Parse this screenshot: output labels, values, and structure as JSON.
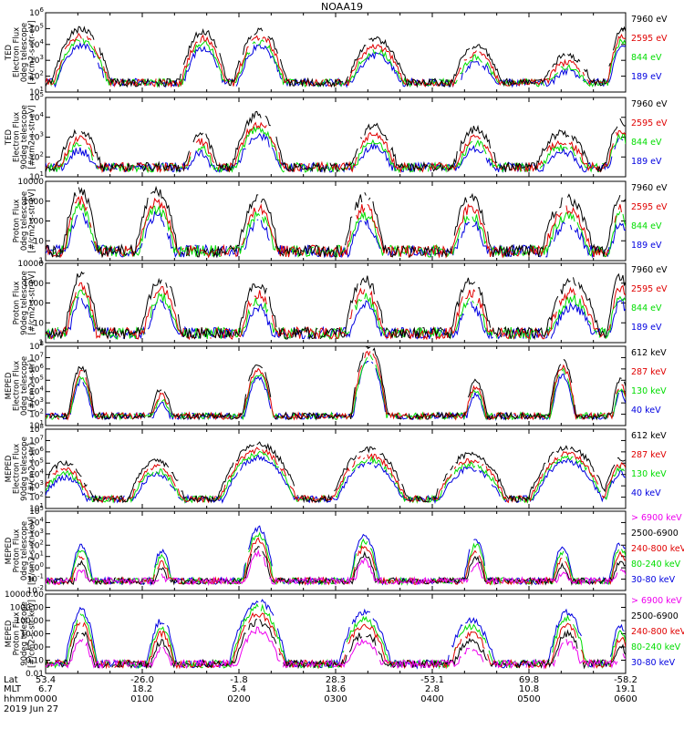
{
  "title": "NOAA19",
  "colors": {
    "black": "#000000",
    "red": "#e00000",
    "green": "#00dd00",
    "blue": "#0000e0",
    "magenta": "#ee00ee"
  },
  "time": {
    "start": "0000",
    "end": "0600",
    "date": "2019 Jun 27"
  },
  "footer": {
    "row_labels": [
      "Lat",
      "MLT",
      "hhmm",
      "2019 Jun 27"
    ],
    "ticks": [
      {
        "lat": "53.4",
        "mlt": "6.7",
        "hhmm": "0000"
      },
      {
        "lat": "-26.0",
        "mlt": "18.2",
        "hhmm": "0100"
      },
      {
        "lat": "-1.8",
        "mlt": "5.4",
        "hhmm": "0200"
      },
      {
        "lat": "28.3",
        "mlt": "18.6",
        "hhmm": "0300"
      },
      {
        "lat": "-53.1",
        "mlt": "2.8",
        "hhmm": "0400"
      },
      {
        "lat": "69.8",
        "mlt": "10.8",
        "hhmm": "0500"
      },
      {
        "lat": "-58.2",
        "mlt": "19.1",
        "hhmm": "0600"
      }
    ]
  },
  "chart_data": [
    {
      "type": "line",
      "panel": 1,
      "ylabel_lines": [
        "TED",
        "Electron Flux",
        "0deg telescope",
        "[#/cm2-s-str-eV]"
      ],
      "ylog": true,
      "ylim": [
        1,
        1000000
      ],
      "ytick_labels": [
        "10^1",
        "10^2",
        "10^3",
        "10^4",
        "10^5",
        "10^6"
      ],
      "legend": [
        {
          "label": "7960 eV",
          "color": "black"
        },
        {
          "label": "2595 eV",
          "color": "red"
        },
        {
          "label": "844 eV",
          "color": "green"
        },
        {
          "label": "189 eV",
          "color": "blue"
        }
      ],
      "events": [
        {
          "t": 0.37,
          "peak": 4.6,
          "w": 0.22
        },
        {
          "t": 1.63,
          "peak": 4.4,
          "w": 0.18
        },
        {
          "t": 2.22,
          "peak": 4.5,
          "w": 0.2
        },
        {
          "t": 3.42,
          "peak": 3.8,
          "w": 0.25
        },
        {
          "t": 4.46,
          "peak": 3.3,
          "w": 0.22
        },
        {
          "t": 5.4,
          "peak": 2.6,
          "w": 0.25
        },
        {
          "t": 5.97,
          "peak": 4.6,
          "w": 0.12
        }
      ]
    },
    {
      "type": "line",
      "panel": 2,
      "ylabel_lines": [
        "TED",
        "Electron Flux",
        "90deg telescope",
        "[#/cm2-s-str-eV]"
      ],
      "ylog": true,
      "ylim": [
        1,
        100000
      ],
      "ytick_labels": [
        "10^1",
        "10^2",
        "10^3",
        "10^4",
        "10^5"
      ],
      "legend": [
        {
          "label": "7960 eV",
          "color": "black"
        },
        {
          "label": "2595 eV",
          "color": "red"
        },
        {
          "label": "844 eV",
          "color": "green"
        },
        {
          "label": "189 eV",
          "color": "blue"
        }
      ],
      "events": [
        {
          "t": 0.35,
          "peak": 2.7,
          "w": 0.2
        },
        {
          "t": 1.6,
          "peak": 2.6,
          "w": 0.15
        },
        {
          "t": 2.2,
          "peak": 3.7,
          "w": 0.2
        },
        {
          "t": 3.4,
          "peak": 3.0,
          "w": 0.2
        },
        {
          "t": 4.45,
          "peak": 2.8,
          "w": 0.2
        },
        {
          "t": 5.35,
          "peak": 2.6,
          "w": 0.25
        },
        {
          "t": 5.95,
          "peak": 3.3,
          "w": 0.12
        }
      ]
    },
    {
      "type": "line",
      "panel": 3,
      "ylabel_lines": [
        "Proton Flux",
        "0deg telescope",
        "[#/cm2-s-str-eV]"
      ],
      "ylog": true,
      "ylim": [
        1,
        10000
      ],
      "ytick_labels": [
        "1",
        "10",
        "100",
        "1000",
        "10000"
      ],
      "legend": [
        {
          "label": "7960 eV",
          "color": "black"
        },
        {
          "label": "2595 eV",
          "color": "red"
        },
        {
          "label": "844 eV",
          "color": "green"
        },
        {
          "label": "189 eV",
          "color": "blue"
        }
      ],
      "events": [
        {
          "t": 0.36,
          "peak": 3.4,
          "w": 0.12
        },
        {
          "t": 1.15,
          "peak": 3.3,
          "w": 0.15
        },
        {
          "t": 2.2,
          "peak": 3.0,
          "w": 0.15
        },
        {
          "t": 3.3,
          "peak": 3.0,
          "w": 0.15
        },
        {
          "t": 4.4,
          "peak": 3.0,
          "w": 0.15
        },
        {
          "t": 5.4,
          "peak": 2.9,
          "w": 0.2
        },
        {
          "t": 5.95,
          "peak": 3.0,
          "w": 0.1
        }
      ]
    },
    {
      "type": "line",
      "panel": 4,
      "ylabel_lines": [
        "Proton Flux",
        "90deg telescope",
        "[#/cm2-s-str-eV]"
      ],
      "ylog": true,
      "ylim": [
        1,
        10000
      ],
      "ytick_labels": [
        "1",
        "10",
        "100",
        "1000",
        "10000"
      ],
      "legend": [
        {
          "label": "7960 eV",
          "color": "black"
        },
        {
          "label": "2595 eV",
          "color": "red"
        },
        {
          "label": "844 eV",
          "color": "green"
        },
        {
          "label": "189 eV",
          "color": "blue"
        }
      ],
      "events": [
        {
          "t": 0.37,
          "peak": 3.2,
          "w": 0.12
        },
        {
          "t": 1.2,
          "peak": 3.0,
          "w": 0.15
        },
        {
          "t": 2.2,
          "peak": 2.8,
          "w": 0.15
        },
        {
          "t": 3.3,
          "peak": 3.0,
          "w": 0.15
        },
        {
          "t": 4.4,
          "peak": 2.9,
          "w": 0.15
        },
        {
          "t": 5.45,
          "peak": 2.9,
          "w": 0.2
        },
        {
          "t": 5.95,
          "peak": 3.1,
          "w": 0.1
        }
      ]
    },
    {
      "type": "line",
      "panel": 5,
      "ylabel_lines": [
        "MEPED",
        "Electron Flux",
        "0deg telescope",
        "[#/cm2-s-str]"
      ],
      "ylog": true,
      "ylim": [
        10,
        100000000
      ],
      "ytick_labels": [
        "10^1",
        "10^2",
        "10^3",
        "10^4",
        "10^5",
        "10^6",
        "10^7",
        "10^8"
      ],
      "legend": [
        {
          "label": "612 keV",
          "color": "black"
        },
        {
          "label": "287 keV",
          "color": "red"
        },
        {
          "label": "130 keV",
          "color": "green"
        },
        {
          "label": "40 keV",
          "color": "blue"
        }
      ],
      "events": [
        {
          "t": 0.37,
          "peak": 6.0,
          "w": 0.1
        },
        {
          "t": 1.2,
          "peak": 4.0,
          "w": 0.12
        },
        {
          "t": 2.2,
          "peak": 6.3,
          "w": 0.12
        },
        {
          "t": 3.35,
          "peak": 7.8,
          "w": 0.12
        },
        {
          "t": 4.45,
          "peak": 4.8,
          "w": 0.1
        },
        {
          "t": 5.35,
          "peak": 6.5,
          "w": 0.1
        },
        {
          "t": 5.95,
          "peak": 5.0,
          "w": 0.08
        }
      ]
    },
    {
      "type": "line",
      "panel": 6,
      "ylabel_lines": [
        "MEPED",
        "Electron Flux",
        "90deg telescope",
        "[#/cm2-s-str]"
      ],
      "ylog": true,
      "ylim": [
        10,
        100000000
      ],
      "ytick_labels": [
        "10^1",
        "10^2",
        "10^3",
        "10^4",
        "10^5",
        "10^6",
        "10^7",
        "10^8"
      ],
      "legend": [
        {
          "label": "612 keV",
          "color": "black"
        },
        {
          "label": "287 keV",
          "color": "red"
        },
        {
          "label": "130 keV",
          "color": "green"
        },
        {
          "label": "40 keV",
          "color": "blue"
        }
      ],
      "events": [
        {
          "t": 0.2,
          "peak": 4.8,
          "w": 0.25
        },
        {
          "t": 1.15,
          "peak": 5.0,
          "w": 0.25
        },
        {
          "t": 2.2,
          "peak": 6.5,
          "w": 0.3
        },
        {
          "t": 3.35,
          "peak": 6.0,
          "w": 0.3
        },
        {
          "t": 4.4,
          "peak": 5.6,
          "w": 0.3
        },
        {
          "t": 5.4,
          "peak": 6.2,
          "w": 0.3
        },
        {
          "t": 5.95,
          "peak": 5.2,
          "w": 0.15
        }
      ]
    },
    {
      "type": "line",
      "panel": 7,
      "ylabel_lines": [
        "MEPED",
        "Proton Flux",
        "0deg telescope",
        "[#/cm2-s-str-keV]"
      ],
      "ylog": true,
      "ylim": [
        0.01,
        100000
      ],
      "ytick_labels": [
        "10^-2",
        "10^-1",
        "10^0",
        "10^1",
        "10^2",
        "10^3",
        "10^4",
        "10^5"
      ],
      "legend": [
        {
          "label": "> 6900 keV",
          "color": "magenta"
        },
        {
          "label": "2500-6900",
          "color": "black"
        },
        {
          "label": "240-800 keV",
          "color": "red"
        },
        {
          "label": "80-240 keV",
          "color": "green"
        },
        {
          "label": "30-80 keV",
          "color": "blue"
        }
      ],
      "events": [
        {
          "t": 0.37,
          "peak": 2.0,
          "w": 0.1
        },
        {
          "t": 1.2,
          "peak": 1.5,
          "w": 0.1
        },
        {
          "t": 2.2,
          "peak": 3.5,
          "w": 0.12
        },
        {
          "t": 3.3,
          "peak": 2.8,
          "w": 0.12
        },
        {
          "t": 4.45,
          "peak": 2.5,
          "w": 0.1
        },
        {
          "t": 5.35,
          "peak": 1.8,
          "w": 0.1
        },
        {
          "t": 5.95,
          "peak": 2.2,
          "w": 0.1
        }
      ]
    },
    {
      "type": "line",
      "panel": 8,
      "ylabel_lines": [
        "MEPED",
        "Proton Flux",
        "90deg telescope",
        "[#/cm2-s-str-keV]"
      ],
      "ylog": true,
      "ylim": [
        0.01,
        10000
      ],
      "ytick_labels": [
        "0.01",
        "0.10",
        "1.00",
        "10.00",
        "100.00",
        "1000.00",
        "10000.00"
      ],
      "legend": [
        {
          "label": "> 6900 keV",
          "color": "magenta"
        },
        {
          "label": "2500-6900",
          "color": "black"
        },
        {
          "label": "240-800 keV",
          "color": "red"
        },
        {
          "label": "80-240 keV",
          "color": "green"
        },
        {
          "label": "30-80 keV",
          "color": "blue"
        }
      ],
      "events": [
        {
          "t": 0.37,
          "peak": 2.8,
          "w": 0.12
        },
        {
          "t": 1.2,
          "peak": 2.0,
          "w": 0.12
        },
        {
          "t": 2.2,
          "peak": 3.5,
          "w": 0.2
        },
        {
          "t": 3.3,
          "peak": 2.6,
          "w": 0.2
        },
        {
          "t": 4.4,
          "peak": 2.0,
          "w": 0.2
        },
        {
          "t": 5.4,
          "peak": 2.6,
          "w": 0.15
        },
        {
          "t": 5.95,
          "peak": 1.6,
          "w": 0.1
        }
      ]
    }
  ]
}
